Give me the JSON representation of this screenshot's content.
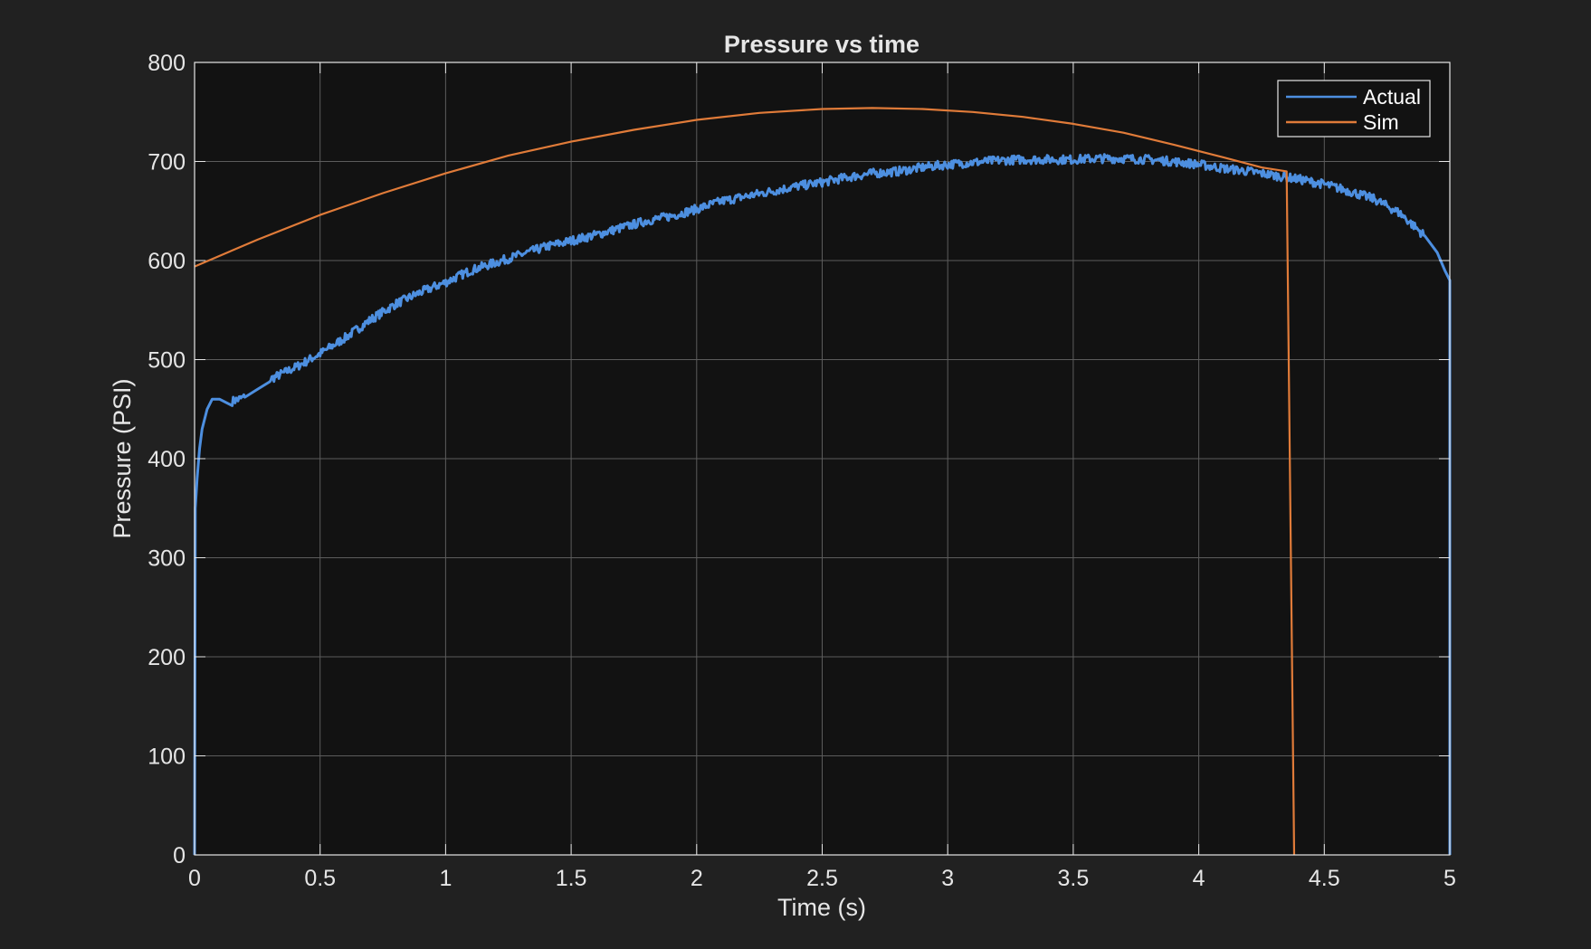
{
  "chart_data": {
    "type": "line",
    "title": "Pressure vs time",
    "xlabel": "Time (s)",
    "ylabel": "Pressure (PSI)",
    "xlim": [
      0,
      5
    ],
    "ylim": [
      0,
      800
    ],
    "xticks": [
      0,
      0.5,
      1,
      1.5,
      2,
      2.5,
      3,
      3.5,
      4,
      4.5,
      5
    ],
    "xtick_labels": [
      "0",
      "0.5",
      "1",
      "1.5",
      "2",
      "2.5",
      "3",
      "3.5",
      "4",
      "4.5",
      "5"
    ],
    "yticks": [
      0,
      100,
      200,
      300,
      400,
      500,
      600,
      700,
      800
    ],
    "ytick_labels": [
      "0",
      "100",
      "200",
      "300",
      "400",
      "500",
      "600",
      "700",
      "800"
    ],
    "grid": true,
    "legend_position": "top-right",
    "colors": {
      "figure_background": "#212121",
      "axes_background": "#121212",
      "grid": "#5c5c5c",
      "axis": "#e6e6e6"
    },
    "series": [
      {
        "name": "Actual",
        "color": "#4d8fe0",
        "noisy": true,
        "x": [
          0,
          0.003,
          0.01,
          0.02,
          0.03,
          0.05,
          0.07,
          0.1,
          0.15,
          0.2,
          0.25,
          0.3,
          0.4,
          0.5,
          0.6,
          0.7,
          0.8,
          0.9,
          1.0,
          1.1,
          1.2,
          1.3,
          1.4,
          1.5,
          1.6,
          1.7,
          1.8,
          1.9,
          2.0,
          2.1,
          2.2,
          2.3,
          2.4,
          2.5,
          2.6,
          2.7,
          2.8,
          2.9,
          3.0,
          3.1,
          3.2,
          3.3,
          3.4,
          3.5,
          3.6,
          3.7,
          3.8,
          3.9,
          4.0,
          4.1,
          4.2,
          4.3,
          4.4,
          4.5,
          4.6,
          4.7,
          4.8,
          4.9,
          4.95,
          4.98,
          5.0,
          5.0
        ],
        "y": [
          0,
          350,
          380,
          410,
          430,
          450,
          460,
          460,
          458,
          462,
          470,
          480,
          492,
          506,
          522,
          540,
          556,
          568,
          578,
          590,
          598,
          606,
          614,
          620,
          626,
          633,
          640,
          645,
          652,
          660,
          665,
          670,
          675,
          679,
          684,
          688,
          690,
          694,
          697,
          699,
          701,
          702,
          702,
          702,
          703,
          703,
          702,
          700,
          697,
          693,
          690,
          686,
          682,
          677,
          670,
          662,
          648,
          625,
          608,
          590,
          580,
          0
        ]
      },
      {
        "name": "Sim",
        "color": "#e07b39",
        "noisy": false,
        "x": [
          0,
          0.25,
          0.5,
          0.75,
          1.0,
          1.25,
          1.5,
          1.75,
          2.0,
          2.25,
          2.5,
          2.7,
          2.9,
          3.1,
          3.3,
          3.5,
          3.7,
          3.9,
          4.1,
          4.25,
          4.35,
          4.38
        ],
        "y": [
          594,
          621,
          646,
          668,
          688,
          706,
          720,
          732,
          742,
          749,
          753,
          754,
          753,
          750,
          745,
          738,
          729,
          717,
          704,
          694,
          690,
          0
        ]
      }
    ]
  }
}
